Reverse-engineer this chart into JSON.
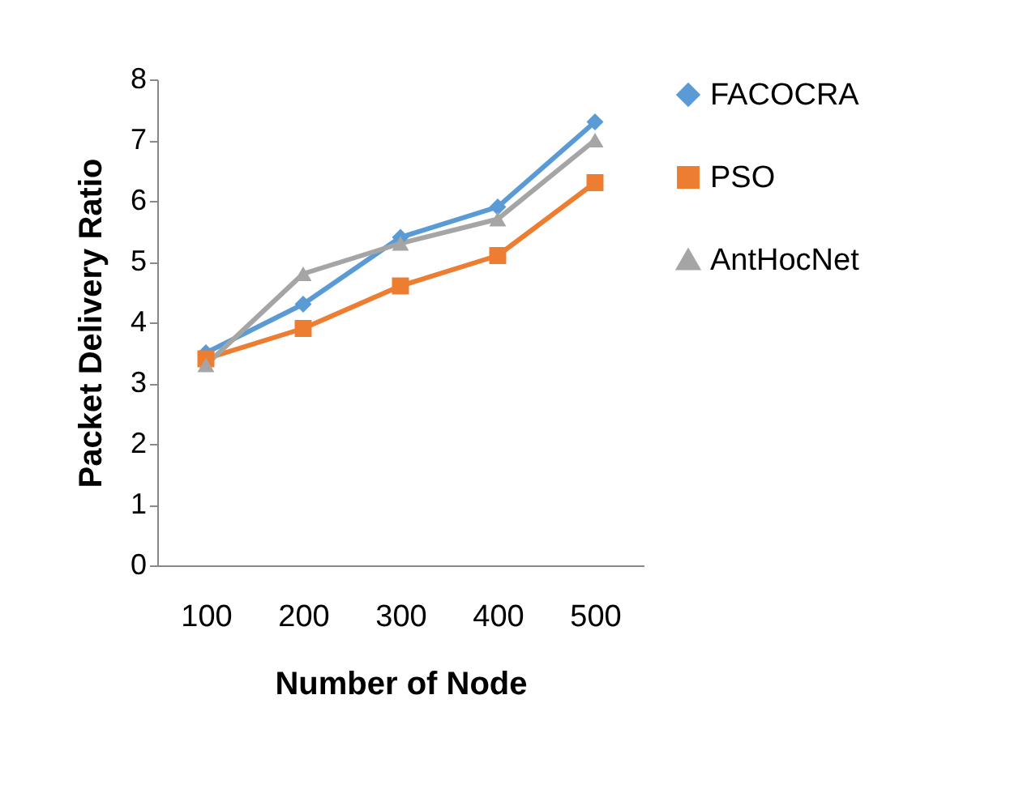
{
  "chart_data": {
    "type": "line",
    "xlabel": "Number of Node",
    "ylabel": "Packet Delivery Ratio",
    "categories": [
      "100",
      "200",
      "300",
      "400",
      "500"
    ],
    "series": [
      {
        "name": "FACOCRA",
        "color": "#5b9bd5",
        "marker": "diamond",
        "values": [
          3.5,
          4.3,
          5.4,
          5.9,
          7.3
        ]
      },
      {
        "name": "PSO",
        "color": "#ed7d31",
        "marker": "square",
        "values": [
          3.4,
          3.9,
          4.6,
          5.1,
          6.3
        ]
      },
      {
        "name": "AntHocNet",
        "color": "#a5a5a5",
        "marker": "triangle",
        "values": [
          3.3,
          4.8,
          5.3,
          5.7,
          7.0
        ]
      }
    ],
    "ylim": [
      0,
      8
    ],
    "yticks": [
      0,
      1,
      2,
      3,
      4,
      5,
      6,
      7,
      8
    ],
    "grid": false,
    "legend": "right",
    "line_style": "solid"
  }
}
